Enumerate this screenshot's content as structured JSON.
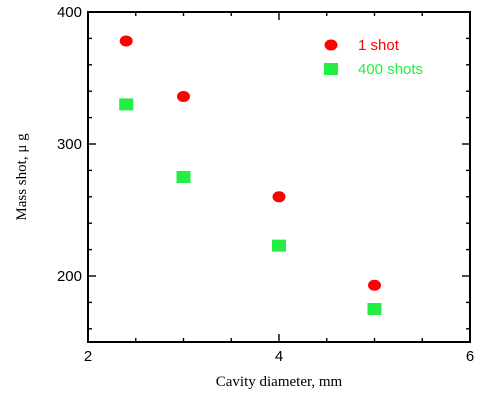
{
  "chart_data": {
    "type": "scatter",
    "xlabel": "Cavity diameter, mm",
    "ylabel": "Mass shot, μ g",
    "xlim": [
      2,
      6
    ],
    "ylim": [
      150,
      400
    ],
    "xticks": [
      2,
      4,
      6
    ],
    "yticks": [
      200,
      300,
      400
    ],
    "grid": false,
    "legend_position": "top-right",
    "series": [
      {
        "name": "1 shot",
        "marker": "circle",
        "color": "#ff0000",
        "x": [
          2.4,
          3.0,
          4.0,
          5.0
        ],
        "y": [
          378,
          336,
          260,
          193
        ]
      },
      {
        "name": "400 shots",
        "marker": "square",
        "color": "#22ee44",
        "x": [
          2.4,
          3.0,
          4.0,
          5.0
        ],
        "y": [
          330,
          275,
          223,
          175
        ]
      }
    ]
  }
}
